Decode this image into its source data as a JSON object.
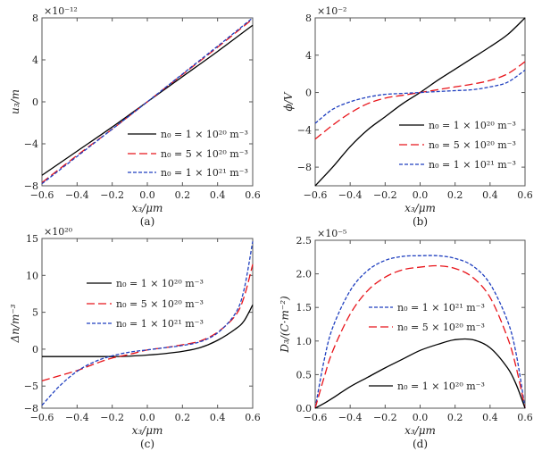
{
  "chart_data": [
    {
      "type": "line",
      "caption": "(a)",
      "xlabel": "x₃/μm",
      "ylabel": "u₃/m",
      "multiplier": "×10⁻¹²",
      "xlim": [
        -0.6,
        0.6
      ],
      "ylim": [
        -8,
        8
      ],
      "xticks": [
        -0.6,
        -0.4,
        -0.2,
        0.0,
        0.2,
        0.4,
        0.6
      ],
      "yticks": [
        -8,
        -4,
        0,
        4,
        8
      ],
      "legend": "bottom-right",
      "x": [
        -0.6,
        -0.4,
        -0.2,
        0,
        0.2,
        0.4,
        0.6
      ],
      "series": [
        {
          "name": "n₀ = 1 × 10²⁰ m⁻³",
          "color": "#000000",
          "style": "solid",
          "values": [
            -7.0,
            -4.7,
            -2.4,
            0,
            2.4,
            4.8,
            7.3
          ]
        },
        {
          "name": "n₀ = 5 × 10²⁰ m⁻³",
          "color": "#e8141a",
          "style": "long-dash",
          "values": [
            -7.7,
            -5.1,
            -2.6,
            0,
            2.6,
            5.2,
            7.9
          ]
        },
        {
          "name": "n₀ = 1 × 10²¹ m⁻³",
          "color": "#1f3fbf",
          "style": "short-dash",
          "values": [
            -7.8,
            -5.2,
            -2.6,
            0,
            2.65,
            5.3,
            8.0
          ]
        }
      ]
    },
    {
      "type": "line",
      "caption": "(b)",
      "xlabel": "x₃/μm",
      "ylabel": "ϕ/V",
      "multiplier": "×10⁻²",
      "xlim": [
        -0.6,
        0.6
      ],
      "ylim": [
        -10,
        8
      ],
      "xticks": [
        -0.6,
        -0.4,
        -0.2,
        0.0,
        0.2,
        0.4,
        0.6
      ],
      "yticks": [
        -8,
        -4,
        0,
        4,
        8
      ],
      "legend": "bottom-right",
      "x": [
        -0.6,
        -0.5,
        -0.4,
        -0.3,
        -0.2,
        -0.1,
        0,
        0.1,
        0.2,
        0.3,
        0.4,
        0.5,
        0.6
      ],
      "series": [
        {
          "name": "n₀ = 1 × 10²⁰ m⁻³",
          "color": "#000000",
          "style": "solid",
          "values": [
            -10,
            -8,
            -5.8,
            -4,
            -2.6,
            -1.2,
            0,
            1.3,
            2.5,
            3.7,
            4.9,
            6.2,
            8
          ]
        },
        {
          "name": "n₀ = 5 × 10²⁰ m⁻³",
          "color": "#e8141a",
          "style": "long-dash",
          "values": [
            -5,
            -3.5,
            -2.2,
            -1.2,
            -0.6,
            -0.3,
            0,
            0.3,
            0.6,
            0.9,
            1.3,
            2,
            3.3
          ]
        },
        {
          "name": "n₀ = 1 × 10²¹ m⁻³",
          "color": "#1f3fbf",
          "style": "short-dash",
          "values": [
            -3.3,
            -1.8,
            -1,
            -0.5,
            -0.2,
            -0.1,
            0,
            0.1,
            0.2,
            0.3,
            0.6,
            1.1,
            2.4
          ]
        }
      ]
    },
    {
      "type": "line",
      "caption": "(c)",
      "xlabel": "x₃/μm",
      "ylabel": "Δn/m⁻³",
      "multiplier": "×10²⁰",
      "xlim": [
        -0.6,
        0.6
      ],
      "ylim": [
        -8,
        15
      ],
      "xticks": [
        -0.6,
        -0.4,
        -0.2,
        0.0,
        0.2,
        0.4,
        0.6
      ],
      "yticks": [
        -8,
        -5,
        0,
        5,
        10,
        15
      ],
      "legend": "top-center",
      "x": [
        -0.6,
        -0.5,
        -0.4,
        -0.3,
        -0.2,
        -0.1,
        0,
        0.1,
        0.2,
        0.3,
        0.4,
        0.5,
        0.55,
        0.6
      ],
      "series": [
        {
          "name": "n₀ = 1 × 10²⁰ m⁻³",
          "color": "#000000",
          "style": "solid",
          "values": [
            -1,
            -1,
            -1,
            -1,
            -1,
            -0.95,
            -0.8,
            -0.6,
            -0.3,
            0.2,
            1.2,
            2.7,
            3.8,
            6
          ]
        },
        {
          "name": "n₀ = 5 × 10²⁰ m⁻³",
          "color": "#e8141a",
          "style": "long-dash",
          "values": [
            -4.3,
            -3.6,
            -2.9,
            -2.0,
            -1.2,
            -0.7,
            -0.1,
            0.2,
            0.6,
            1.1,
            2.3,
            4.5,
            7,
            11.5
          ]
        },
        {
          "name": "n₀ = 1 × 10²¹ m⁻³",
          "color": "#1f3fbf",
          "style": "short-dash",
          "values": [
            -7.6,
            -5,
            -3,
            -1.7,
            -0.9,
            -0.4,
            -0.1,
            0.2,
            0.5,
            1.0,
            2.2,
            4.8,
            8,
            14.6
          ]
        }
      ]
    },
    {
      "type": "line",
      "caption": "(d)",
      "xlabel": "x₃/μm",
      "ylabel": "D₃/(C·m⁻²)",
      "multiplier": "×10⁻⁵",
      "xlim": [
        -0.6,
        0.6
      ],
      "ylim": [
        0,
        2.5
      ],
      "xticks": [
        -0.6,
        -0.4,
        -0.2,
        0.0,
        0.2,
        0.4,
        0.6
      ],
      "yticks": [
        0,
        0.5,
        1.0,
        1.5,
        2.0,
        2.5
      ],
      "legend": "center",
      "x": [
        -0.6,
        -0.55,
        -0.5,
        -0.4,
        -0.3,
        -0.2,
        -0.1,
        0,
        0.1,
        0.2,
        0.3,
        0.4,
        0.5,
        0.55,
        0.6
      ],
      "series": [
        {
          "name": "n₀ = 1 × 10²¹ m⁻³",
          "color": "#1f3fbf",
          "style": "short-dash",
          "values": [
            0,
            0.7,
            1.2,
            1.75,
            2.05,
            2.2,
            2.26,
            2.27,
            2.27,
            2.23,
            2.12,
            1.85,
            1.3,
            0.8,
            0
          ]
        },
        {
          "name": "n₀ = 5 × 10²⁰ m⁻³",
          "color": "#e8141a",
          "style": "long-dash",
          "values": [
            0,
            0.45,
            0.85,
            1.4,
            1.75,
            1.95,
            2.06,
            2.1,
            2.12,
            2.08,
            1.95,
            1.65,
            1.05,
            0.6,
            0
          ]
        },
        {
          "name": "n₀ = 1 × 10²⁰ m⁻³",
          "color": "#000000",
          "style": "solid",
          "values": [
            0,
            0.07,
            0.15,
            0.32,
            0.46,
            0.6,
            0.73,
            0.86,
            0.95,
            1.02,
            1.02,
            0.9,
            0.6,
            0.35,
            0
          ]
        }
      ]
    }
  ]
}
